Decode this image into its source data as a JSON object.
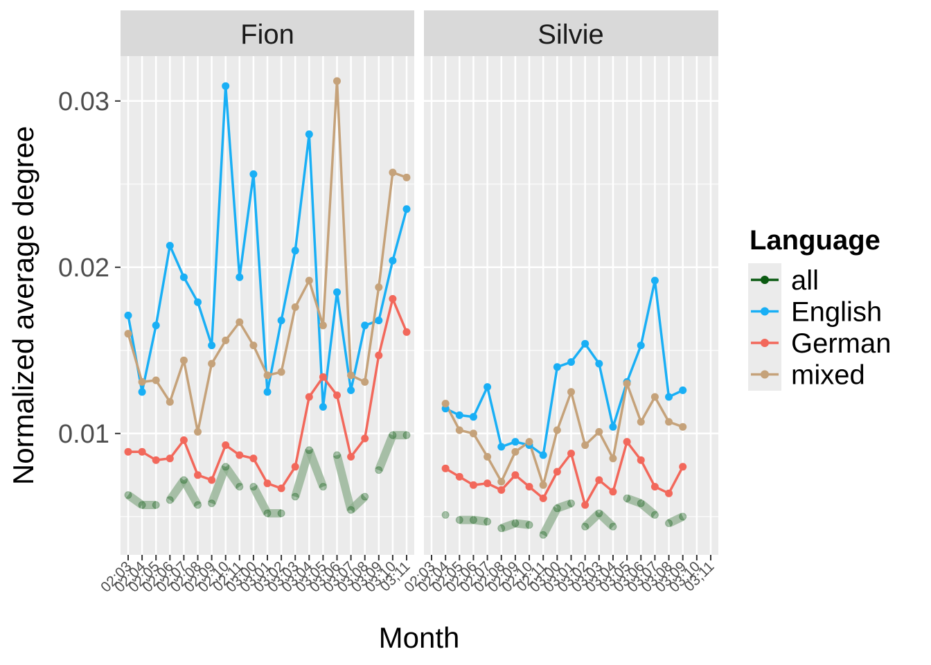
{
  "chart_data": {
    "type": "line",
    "ylabel": "Normalized average degree",
    "xlabel": "Month",
    "ylim": [
      0.0027,
      0.0327
    ],
    "y_ticks": [
      0.01,
      0.02,
      0.03
    ],
    "y_tick_labels": [
      "0.01",
      "0.02",
      "0.03"
    ],
    "grid": true,
    "legend": {
      "title": "Language",
      "position": "right",
      "entries": [
        {
          "name": "all",
          "color": "#0b5a12"
        },
        {
          "name": "English",
          "color": "#19aff5"
        },
        {
          "name": "German",
          "color": "#f2685b"
        },
        {
          "name": "mixed",
          "color": "#c5a27a"
        }
      ]
    },
    "colors": {
      "all": "#0b5a12",
      "English": "#19aff5",
      "German": "#f2685b",
      "mixed": "#c5a27a",
      "all_band": "#8fb08f",
      "panel_bg": "#ebebeb",
      "strip_bg": "#d9d9d9"
    },
    "x_tick_labels": [
      "02;03",
      "02;04",
      "02;05",
      "02;06",
      "02;07",
      "02;08",
      "02;09",
      "02;10",
      "02;11",
      "03;00",
      "03;01",
      "03;02",
      "03;03",
      "03;04",
      "03;05",
      "03;06",
      "03;07",
      "03;08",
      "03;09",
      "03;10",
      "03;11"
    ],
    "panels": [
      {
        "title": "Fion",
        "series": [
          {
            "name": "English",
            "values": [
              0.0171,
              0.0125,
              0.0165,
              0.0213,
              0.0194,
              0.0179,
              0.0153,
              0.0309,
              0.0194,
              0.0256,
              0.0125,
              0.0168,
              0.021,
              0.028,
              0.0116,
              0.0185,
              0.0126,
              0.0165,
              0.0168,
              0.0204,
              0.0235
            ]
          },
          {
            "name": "German",
            "values": [
              0.0089,
              0.0089,
              0.0084,
              0.0085,
              0.0096,
              0.0075,
              0.0072,
              0.0093,
              0.0087,
              0.0085,
              0.007,
              0.0067,
              0.008,
              0.0122,
              0.0134,
              0.0123,
              0.0086,
              0.0097,
              0.0147,
              0.0181,
              0.0161
            ]
          },
          {
            "name": "mixed",
            "values": [
              0.016,
              0.0131,
              0.0132,
              0.0119,
              0.0144,
              0.0101,
              0.0142,
              0.0156,
              0.0167,
              0.0153,
              0.0135,
              0.0137,
              0.0176,
              0.0192,
              0.0165,
              0.0312,
              0.0135,
              0.0131,
              0.0188,
              0.0257,
              0.0254
            ]
          },
          {
            "name": "all",
            "values": [
              0.0063,
              0.0057,
              0.0057,
              0.006,
              0.0072,
              0.0057,
              0.0058,
              0.008,
              0.0068,
              0.0068,
              0.0052,
              0.0052,
              0.0062,
              0.009,
              0.0068,
              0.0087,
              0.0054,
              0.0062,
              0.0078,
              0.0099,
              0.0099
            ]
          }
        ]
      },
      {
        "title": "Silvie",
        "series": [
          {
            "name": "English",
            "values": [
              null,
              0.0115,
              0.0111,
              0.011,
              0.0128,
              0.0092,
              0.0095,
              0.0093,
              0.0087,
              0.014,
              0.0143,
              0.0154,
              0.0142,
              0.0104,
              0.0131,
              0.0153,
              0.0192,
              0.0122,
              0.0126,
              null,
              null
            ]
          },
          {
            "name": "German",
            "values": [
              null,
              0.0079,
              0.0074,
              0.0069,
              0.007,
              0.0066,
              0.0075,
              0.0068,
              0.0061,
              0.0077,
              0.0088,
              0.0057,
              0.0072,
              0.0065,
              0.0095,
              0.0084,
              0.0068,
              0.0064,
              0.008,
              null,
              null
            ]
          },
          {
            "name": "mixed",
            "values": [
              null,
              0.0118,
              0.0102,
              0.01,
              0.0086,
              0.0071,
              0.0089,
              0.0095,
              0.0069,
              0.0102,
              0.0125,
              0.0093,
              0.0101,
              0.0085,
              0.013,
              0.0107,
              0.0122,
              0.0107,
              0.0104,
              null,
              null
            ]
          },
          {
            "name": "all",
            "values": [
              null,
              0.0051,
              0.0048,
              0.0048,
              0.0047,
              0.0043,
              0.0046,
              0.0045,
              0.0039,
              0.0055,
              0.0058,
              0.0044,
              0.0052,
              0.0044,
              0.0061,
              0.0058,
              0.0051,
              0.0046,
              0.005,
              null,
              null
            ]
          }
        ]
      }
    ]
  }
}
